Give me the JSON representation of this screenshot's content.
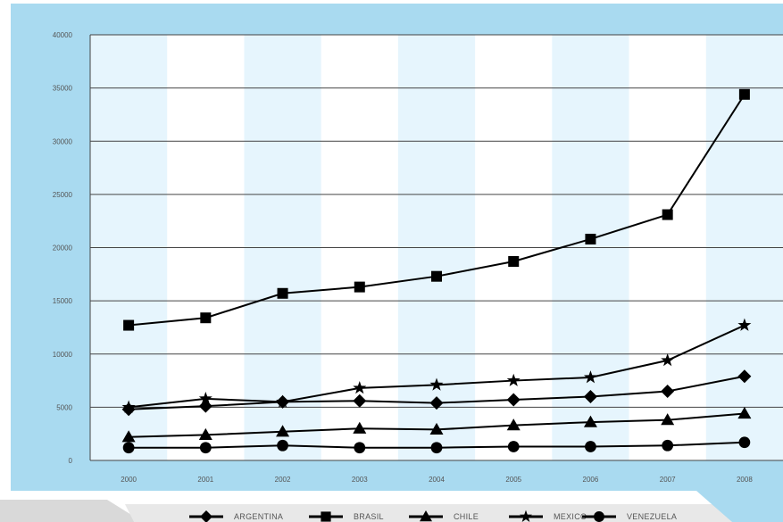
{
  "colors": {
    "frame": "#a9daf0",
    "band": "#e6f5fd",
    "plot_bg": "#ffffff",
    "grid": "#444444",
    "series": "#000000",
    "footer_gray": "#d4d4d4"
  },
  "chart_data": {
    "type": "line",
    "x": [
      "2000",
      "2001",
      "2002",
      "2003",
      "2004",
      "2005",
      "2006",
      "2007",
      "2008"
    ],
    "ylim": [
      0,
      40000
    ],
    "yticks": [
      "0",
      "5000",
      "10000",
      "15000",
      "20000",
      "25000",
      "30000",
      "35000",
      "40000"
    ],
    "grid": true,
    "legend_position": "bottom",
    "series": [
      {
        "name": "ARGENTINA",
        "marker": "diamond",
        "values": [
          4800,
          5100,
          5500,
          5600,
          5400,
          5700,
          6000,
          6500,
          7900
        ]
      },
      {
        "name": "BRASIL",
        "marker": "square",
        "values": [
          12700,
          13400,
          15700,
          16300,
          17300,
          18700,
          20800,
          23100,
          34400
        ]
      },
      {
        "name": "CHILE",
        "marker": "triangle",
        "values": [
          2200,
          2400,
          2700,
          3000,
          2900,
          3300,
          3600,
          3800,
          4400
        ]
      },
      {
        "name": "MEXICO",
        "marker": "star",
        "values": [
          5000,
          5800,
          5500,
          6800,
          7100,
          7500,
          7800,
          9400,
          12700
        ]
      },
      {
        "name": "VENEZUELA",
        "marker": "circle",
        "values": [
          1200,
          1200,
          1400,
          1200,
          1200,
          1300,
          1300,
          1400,
          1700
        ]
      }
    ]
  }
}
